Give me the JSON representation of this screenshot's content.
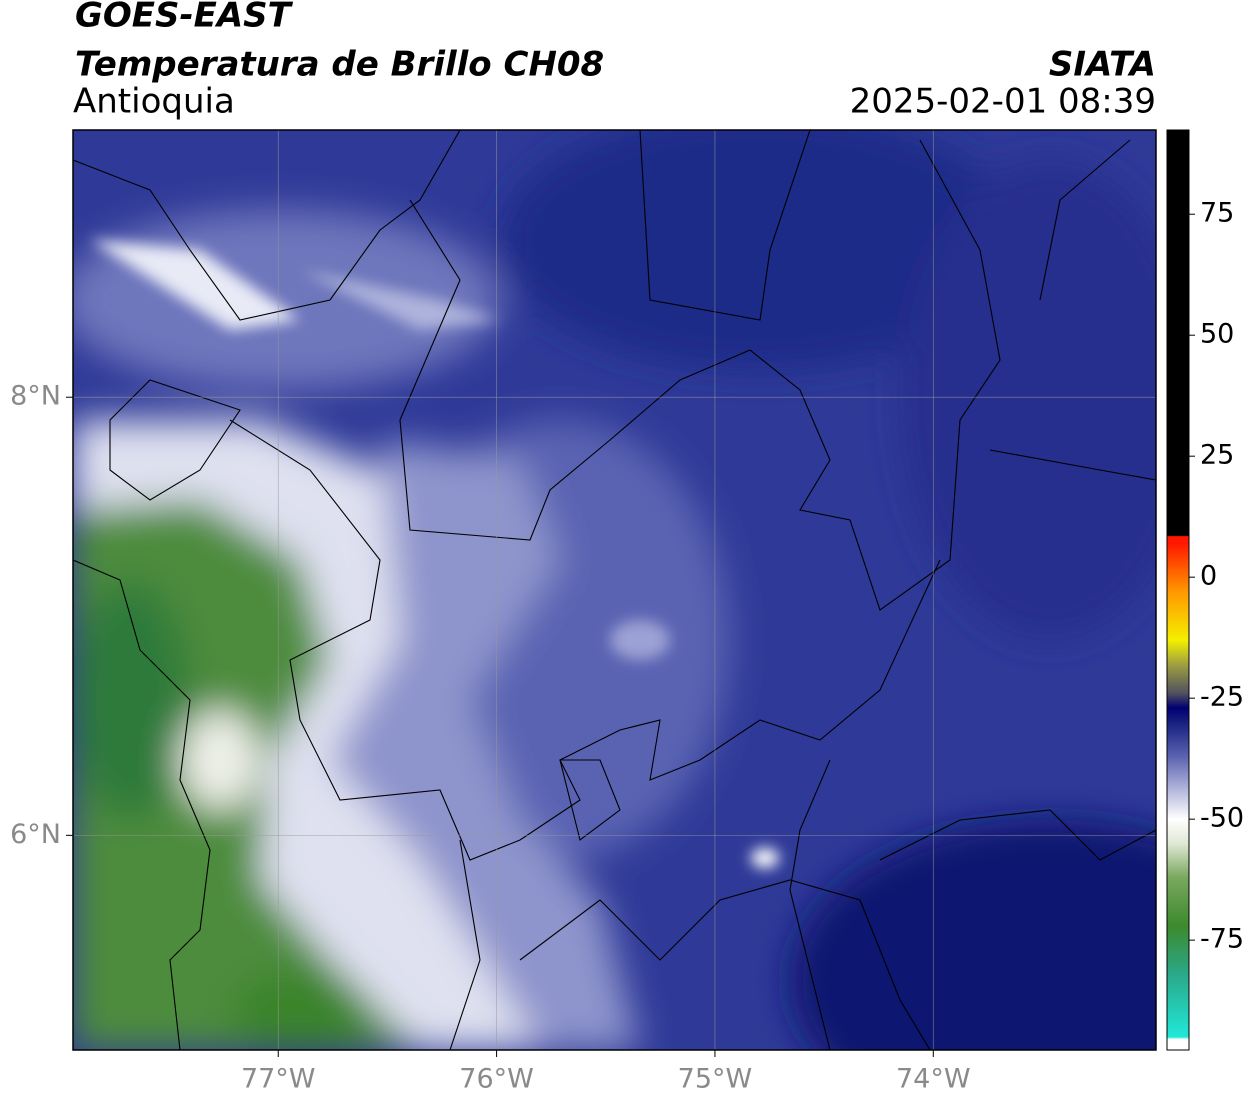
{
  "header": {
    "title": "GOES-EAST",
    "subtitle": "Temperatura de Brillo CH08",
    "region": "Antioquia",
    "source": "SIATA",
    "datetime": "2025-02-01 08:39"
  },
  "map": {
    "xlim": [
      -77.94,
      -72.98
    ],
    "ylim": [
      5.02,
      9.22
    ],
    "xticks": [
      {
        "value": -77,
        "label": "77°W"
      },
      {
        "value": -76,
        "label": "76°W"
      },
      {
        "value": -75,
        "label": "75°W"
      },
      {
        "value": -74,
        "label": "74°W"
      }
    ],
    "yticks": [
      {
        "value": 8,
        "label": "8°N"
      },
      {
        "value": 6,
        "label": "6°N"
      }
    ],
    "grid": true
  },
  "colorbar": {
    "lim": [
      -97.7,
      92.4
    ],
    "ticks": [
      75,
      50,
      25,
      0,
      -25,
      -50,
      -75
    ],
    "colormap": [
      {
        "value": -97.7,
        "color": "#ffffff"
      },
      {
        "value": -95.5,
        "color": "#ffffff"
      },
      {
        "value": -95,
        "color": "#20e8d8"
      },
      {
        "value": -82,
        "color": "#2aa888"
      },
      {
        "value": -72,
        "color": "#3c8a2c"
      },
      {
        "value": -62,
        "color": "#7aa860"
      },
      {
        "value": -55,
        "color": "#dfe8d4"
      },
      {
        "value": -50,
        "color": "#ffffff"
      },
      {
        "value": -44,
        "color": "#b4b8dc"
      },
      {
        "value": -37,
        "color": "#5a62b0"
      },
      {
        "value": -31,
        "color": "#202a86"
      },
      {
        "value": -27,
        "color": "#000070"
      },
      {
        "value": -24,
        "color": "#505060"
      },
      {
        "value": -18,
        "color": "#a0a040"
      },
      {
        "value": -13,
        "color": "#f4f000"
      },
      {
        "value": -3,
        "color": "#ff9800"
      },
      {
        "value": 7,
        "color": "#ff1800"
      },
      {
        "value": 8.4,
        "color": "#ff1800"
      },
      {
        "value": 8.6,
        "color": "#000000"
      },
      {
        "value": 92.4,
        "color": "#000000"
      }
    ]
  }
}
